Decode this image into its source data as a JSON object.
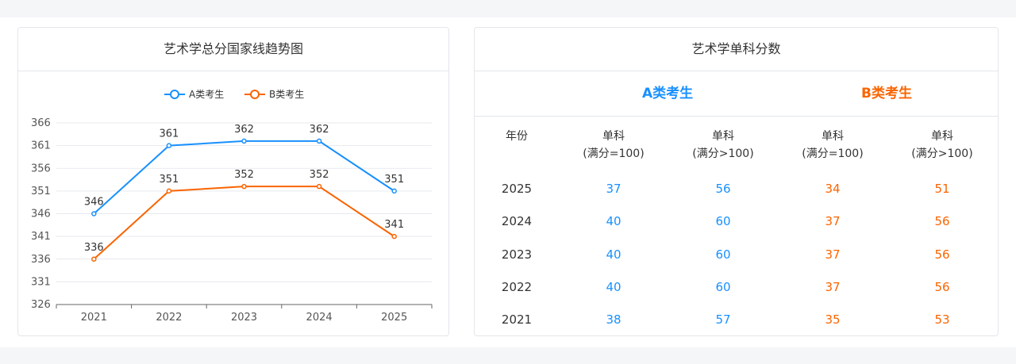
{
  "left_card": {
    "title": "艺术学总分国家线趋势图"
  },
  "right_card": {
    "title": "艺术学单科分数",
    "group_a": "A类考生",
    "group_b": "B类考生",
    "headers": {
      "year": "年份",
      "col1": [
        "单科",
        "(满分=100)"
      ],
      "col2": [
        "单科",
        "(满分>100)"
      ],
      "col3": [
        "单科",
        "(满分=100)"
      ],
      "col4": [
        "单科",
        "(满分>100)"
      ]
    },
    "rows": [
      {
        "year": "2025",
        "a100": "37",
        "aOver": "56",
        "b100": "34",
        "bOver": "51"
      },
      {
        "year": "2024",
        "a100": "40",
        "aOver": "60",
        "b100": "37",
        "bOver": "56"
      },
      {
        "year": "2023",
        "a100": "40",
        "aOver": "60",
        "b100": "37",
        "bOver": "56"
      },
      {
        "year": "2022",
        "a100": "40",
        "aOver": "60",
        "b100": "37",
        "bOver": "56"
      },
      {
        "year": "2021",
        "a100": "38",
        "aOver": "57",
        "b100": "35",
        "bOver": "53"
      }
    ]
  },
  "colors": {
    "series_a": "#1890ff",
    "series_b": "#fa6400"
  },
  "chart_data": {
    "type": "line",
    "title": "艺术学总分国家线趋势图",
    "categories": [
      "2021",
      "2022",
      "2023",
      "2024",
      "2025"
    ],
    "series": [
      {
        "name": "A类考生",
        "values": [
          346,
          361,
          362,
          362,
          351
        ]
      },
      {
        "name": "B类考生",
        "values": [
          336,
          351,
          352,
          352,
          341
        ]
      }
    ],
    "yticks": [
      326,
      331,
      336,
      341,
      346,
      351,
      356,
      361,
      366
    ],
    "ylim": [
      326,
      366
    ],
    "legend": "top-center",
    "grid": true
  }
}
